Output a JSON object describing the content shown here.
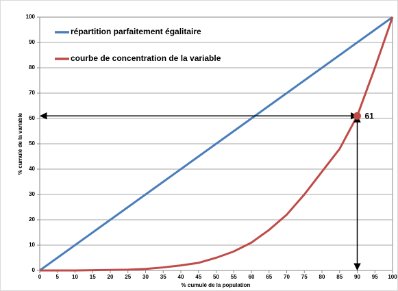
{
  "chart_data": {
    "type": "line",
    "x_label": "% cumulé de la population",
    "y_label": "% cumulé de la variable",
    "x": [
      0,
      5,
      10,
      15,
      20,
      25,
      30,
      35,
      40,
      45,
      50,
      55,
      60,
      65,
      70,
      75,
      80,
      85,
      90,
      95,
      100
    ],
    "series": [
      {
        "name": "répartition parfaitement égalitaire",
        "color": "#4a7ebb",
        "values": [
          0,
          5,
          10,
          15,
          20,
          25,
          30,
          35,
          40,
          45,
          50,
          55,
          60,
          65,
          70,
          75,
          80,
          85,
          90,
          95,
          100
        ]
      },
      {
        "name": "courbe de concentration de la variable",
        "color": "#be4b48",
        "values": [
          0,
          0,
          0,
          0.1,
          0.2,
          0.3,
          0.6,
          1.2,
          2,
          3,
          5,
          7.5,
          11,
          16,
          22,
          30,
          39,
          48,
          61,
          80,
          100
        ]
      }
    ],
    "annotation": {
      "x": 90,
      "y": 61
    },
    "xlim": [
      0,
      100
    ],
    "xticks": [
      0,
      5,
      10,
      15,
      20,
      25,
      30,
      35,
      40,
      45,
      50,
      55,
      60,
      65,
      70,
      75,
      80,
      85,
      90,
      95,
      100
    ],
    "ylim": [
      0,
      100
    ],
    "yticks": [
      0,
      10,
      20,
      30,
      40,
      50,
      60,
      70,
      80,
      90,
      100
    ],
    "grid": true
  }
}
